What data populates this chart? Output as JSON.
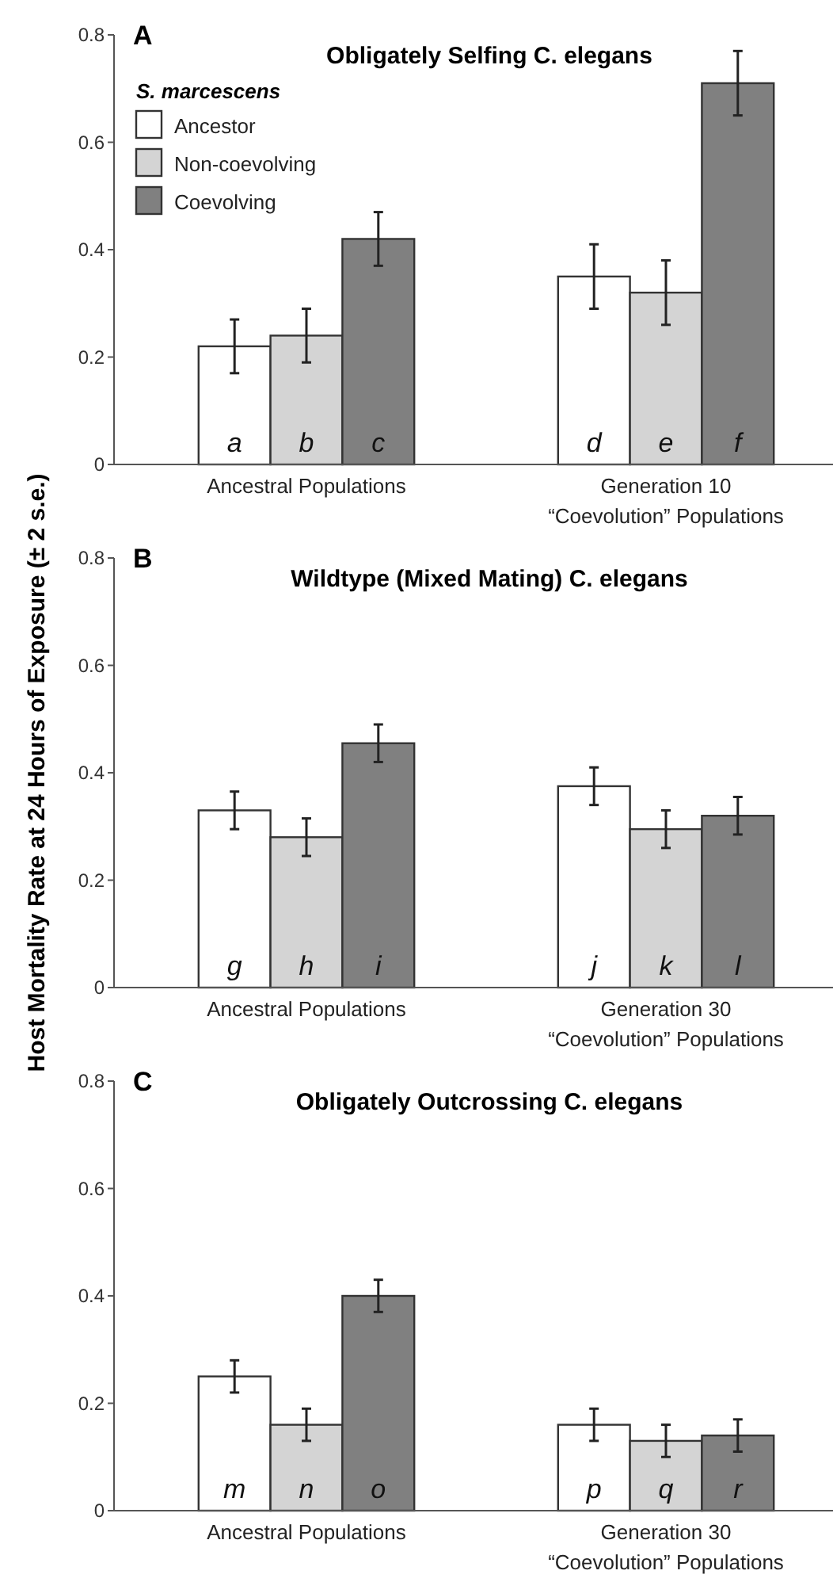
{
  "chart_data": [
    {
      "type": "bar",
      "title": "Obligately Selfing C. elegans",
      "annotations": [
        "A"
      ],
      "legend": "top left",
      "legend_title": "S. marcescens",
      "categories": [
        "Ancestral Populations",
        "Generation 10\n“Coevolution” Populations"
      ],
      "ylim": [
        0,
        0.8
      ],
      "yticks": [
        0,
        0.2,
        0.4,
        0.6,
        0.8
      ],
      "series": [
        {
          "name": "Ancestor",
          "color": "#ffffff",
          "values": [
            0.22,
            0.35
          ],
          "errors": [
            0.05,
            0.06
          ],
          "value_labels": [
            "a",
            "d"
          ]
        },
        {
          "name": "Non-coevolving",
          "color": "#d4d4d4",
          "values": [
            0.24,
            0.32
          ],
          "errors": [
            0.05,
            0.06
          ],
          "value_labels": [
            "b",
            "e"
          ]
        },
        {
          "name": "Coevolving",
          "color": "#808080",
          "values": [
            0.42,
            0.71
          ],
          "errors": [
            0.05,
            0.06
          ],
          "value_labels": [
            "c",
            "f"
          ]
        }
      ]
    },
    {
      "type": "bar",
      "title": "Wildtype (Mixed Mating) C. elegans",
      "annotations": [
        "B"
      ],
      "ylabel": "Host Mortality Rate at 24 Hours of Exposure (± 2 s.e.)",
      "categories": [
        "Ancestral Populations",
        "Generation 30\n“Coevolution” Populations"
      ],
      "ylim": [
        0,
        0.8
      ],
      "yticks": [
        0,
        0.2,
        0.4,
        0.6,
        0.8
      ],
      "series": [
        {
          "color": "#ffffff",
          "values": [
            0.33,
            0.375
          ],
          "errors": [
            0.035,
            0.035
          ],
          "value_labels": [
            "g",
            "j"
          ]
        },
        {
          "color": "#d4d4d4",
          "values": [
            0.28,
            0.295
          ],
          "errors": [
            0.035,
            0.035
          ],
          "value_labels": [
            "h",
            "k"
          ]
        },
        {
          "color": "#808080",
          "values": [
            0.455,
            0.32
          ],
          "errors": [
            0.035,
            0.035
          ],
          "value_labels": [
            "i",
            "l"
          ]
        }
      ]
    },
    {
      "type": "bar",
      "title": "Obligately Outcrossing C. elegans",
      "annotations": [
        "C"
      ],
      "categories": [
        "Ancestral Populations",
        "Generation 30\n“Coevolution” Populations"
      ],
      "ylim": [
        0,
        0.8
      ],
      "yticks": [
        0,
        0.2,
        0.4,
        0.6,
        0.8
      ],
      "series": [
        {
          "color": "#ffffff",
          "values": [
            0.25,
            0.16
          ],
          "errors": [
            0.03,
            0.03
          ],
          "value_labels": [
            "m",
            "p"
          ]
        },
        {
          "color": "#d4d4d4",
          "values": [
            0.16,
            0.13
          ],
          "errors": [
            0.03,
            0.03
          ],
          "value_labels": [
            "n",
            "q"
          ]
        },
        {
          "color": "#808080",
          "values": [
            0.4,
            0.14
          ],
          "errors": [
            0.03,
            0.03
          ],
          "value_labels": [
            "o",
            "r"
          ]
        }
      ]
    }
  ]
}
